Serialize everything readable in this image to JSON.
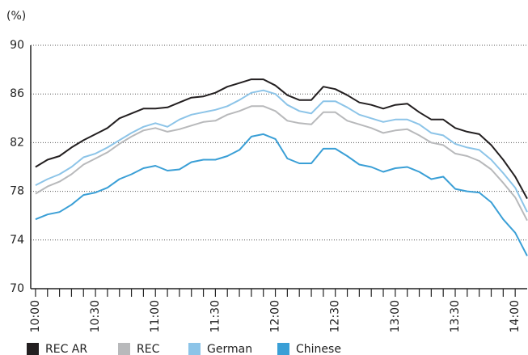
{
  "chart_data": {
    "type": "line",
    "ylabel": "(%)",
    "x": [
      0,
      6,
      12,
      18,
      24,
      30,
      36,
      42,
      48,
      54,
      60,
      66,
      72,
      78,
      84,
      90,
      96,
      102,
      108,
      114,
      120,
      126,
      132,
      138,
      144,
      150,
      156,
      162,
      168,
      174,
      180,
      186,
      192,
      198,
      204,
      210,
      216,
      222,
      228,
      234,
      240,
      246
    ],
    "series": [
      {
        "name": "REC AR",
        "color": "#231f20",
        "values": [
          80.0,
          80.6,
          80.9,
          81.6,
          82.2,
          82.7,
          83.2,
          84.0,
          84.4,
          84.8,
          84.8,
          84.9,
          85.3,
          85.7,
          85.8,
          86.1,
          86.6,
          86.9,
          87.2,
          87.2,
          86.7,
          85.9,
          85.5,
          85.5,
          86.6,
          86.4,
          85.9,
          85.3,
          85.1,
          84.8,
          85.1,
          85.2,
          84.5,
          83.9,
          83.9,
          83.2,
          82.9,
          82.7,
          81.8,
          80.6,
          79.2,
          77.4
        ]
      },
      {
        "name": "REC",
        "color": "#b8b9bb",
        "values": [
          77.8,
          78.4,
          78.8,
          79.4,
          80.2,
          80.7,
          81.2,
          81.9,
          82.5,
          83.0,
          83.2,
          82.9,
          83.1,
          83.4,
          83.7,
          83.8,
          84.3,
          84.6,
          85.0,
          85.0,
          84.6,
          83.8,
          83.6,
          83.5,
          84.5,
          84.5,
          83.8,
          83.5,
          83.2,
          82.8,
          83.0,
          83.1,
          82.6,
          82.0,
          81.8,
          81.1,
          80.9,
          80.5,
          79.8,
          78.7,
          77.5,
          75.6
        ]
      },
      {
        "name": "German",
        "color": "#8cc4e8",
        "values": [
          78.5,
          79.0,
          79.4,
          80.0,
          80.8,
          81.1,
          81.6,
          82.2,
          82.8,
          83.3,
          83.6,
          83.3,
          83.9,
          84.3,
          84.5,
          84.7,
          85.0,
          85.5,
          86.1,
          86.3,
          86.0,
          85.1,
          84.6,
          84.4,
          85.4,
          85.4,
          84.9,
          84.3,
          84.0,
          83.7,
          83.9,
          83.9,
          83.5,
          82.8,
          82.6,
          81.9,
          81.6,
          81.4,
          80.6,
          79.5,
          78.3,
          76.3
        ]
      },
      {
        "name": "Chinese",
        "color": "#3a9fd6",
        "values": [
          75.7,
          76.1,
          76.3,
          76.9,
          77.7,
          77.9,
          78.3,
          79.0,
          79.4,
          79.9,
          80.1,
          79.7,
          79.8,
          80.4,
          80.6,
          80.6,
          80.9,
          81.4,
          82.5,
          82.7,
          82.3,
          80.7,
          80.3,
          80.3,
          81.5,
          81.5,
          80.9,
          80.2,
          80.0,
          79.6,
          79.9,
          80.0,
          79.6,
          79.0,
          79.2,
          78.2,
          78.0,
          77.9,
          77.1,
          75.7,
          74.6,
          72.7
        ]
      }
    ],
    "xlim": [
      -2.4,
      246
    ],
    "xticks": [
      {
        "value": 0,
        "label": "10:00"
      },
      {
        "value": 30,
        "label": "10:30"
      },
      {
        "value": 60,
        "label": "11:00"
      },
      {
        "value": 90,
        "label": "11:30"
      },
      {
        "value": 120,
        "label": "12:00"
      },
      {
        "value": 150,
        "label": "12:30"
      },
      {
        "value": 180,
        "label": "13:00"
      },
      {
        "value": 210,
        "label": "13:30"
      },
      {
        "value": 240,
        "label": "14:00"
      }
    ],
    "xminorticks": [
      0,
      6,
      12,
      18,
      24,
      30,
      36,
      42,
      48,
      54,
      60,
      66,
      72,
      78,
      84,
      90,
      96,
      102,
      108,
      114,
      120,
      126,
      132,
      138,
      144,
      150,
      156,
      162,
      168,
      174,
      180,
      186,
      192,
      198,
      204,
      210,
      216,
      222,
      228,
      234,
      240
    ],
    "ylim": [
      70,
      90
    ],
    "yticks": [
      70,
      74,
      78,
      82,
      86,
      90
    ],
    "grid": true,
    "legend": "bottom"
  }
}
